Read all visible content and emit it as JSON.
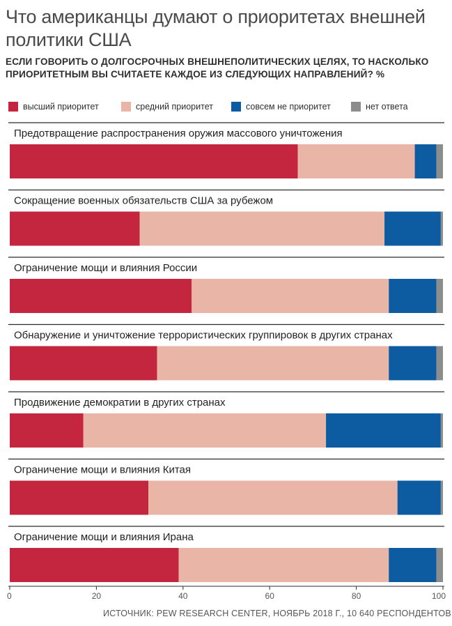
{
  "chart_data": {
    "type": "bar",
    "orientation": "horizontal",
    "stacked": true,
    "title": "Что американцы думают о приоритетах внешней политики США",
    "subtitle": "ЕСЛИ ГОВОРИТЬ О ДОЛГОСРОЧНЫХ ВНЕШНЕПОЛИТИЧЕСКИХ ЦЕЛЯХ, ТО НАСКОЛЬКО ПРИОРИТЕТНЫМ ВЫ СЧИТАЕТЕ КАЖДОЕ ИЗ СЛЕДУЮЩИХ НАПРАВЛЕНИЙ? %",
    "categories": [
      "Предотвращение распространения оружия массового уничтожения",
      "Сокращение военных обязательств США за рубежом",
      "Ограничение мощи и влияния России",
      "Обнаружение и уничтожение террористических группировок в других странах",
      "Продвижение демократии в других странах",
      "Ограничение мощи и влияния Китая",
      "Ограничение мощи и влияния Ирана"
    ],
    "series": [
      {
        "name": "высший приоритет",
        "color": "#c4253f",
        "values": [
          66.5,
          30,
          42,
          34,
          17,
          32,
          39
        ]
      },
      {
        "name": "средний приоритет",
        "color": "#e8b5a6",
        "values": [
          27,
          56.5,
          45.5,
          53.5,
          56,
          57.5,
          48.5
        ]
      },
      {
        "name": "совсем не приоритет",
        "color": "#0d5ba0",
        "values": [
          5,
          13,
          11,
          11,
          26.5,
          10,
          11
        ]
      },
      {
        "name": "нет ответа",
        "color": "#8c8c8c",
        "values": [
          1.5,
          0.5,
          1.5,
          1.5,
          0.5,
          0.5,
          1.5
        ]
      }
    ],
    "xlim": [
      0,
      100
    ],
    "xticks": [
      0,
      20,
      40,
      60,
      80,
      100
    ],
    "legend_position": "top",
    "grid": false
  },
  "source": "ИСТОЧНИК: PEW RESEARCH CENTER, НОЯБРЬ 2018 Г., 10 640 РЕСПОНДЕНТОВ"
}
